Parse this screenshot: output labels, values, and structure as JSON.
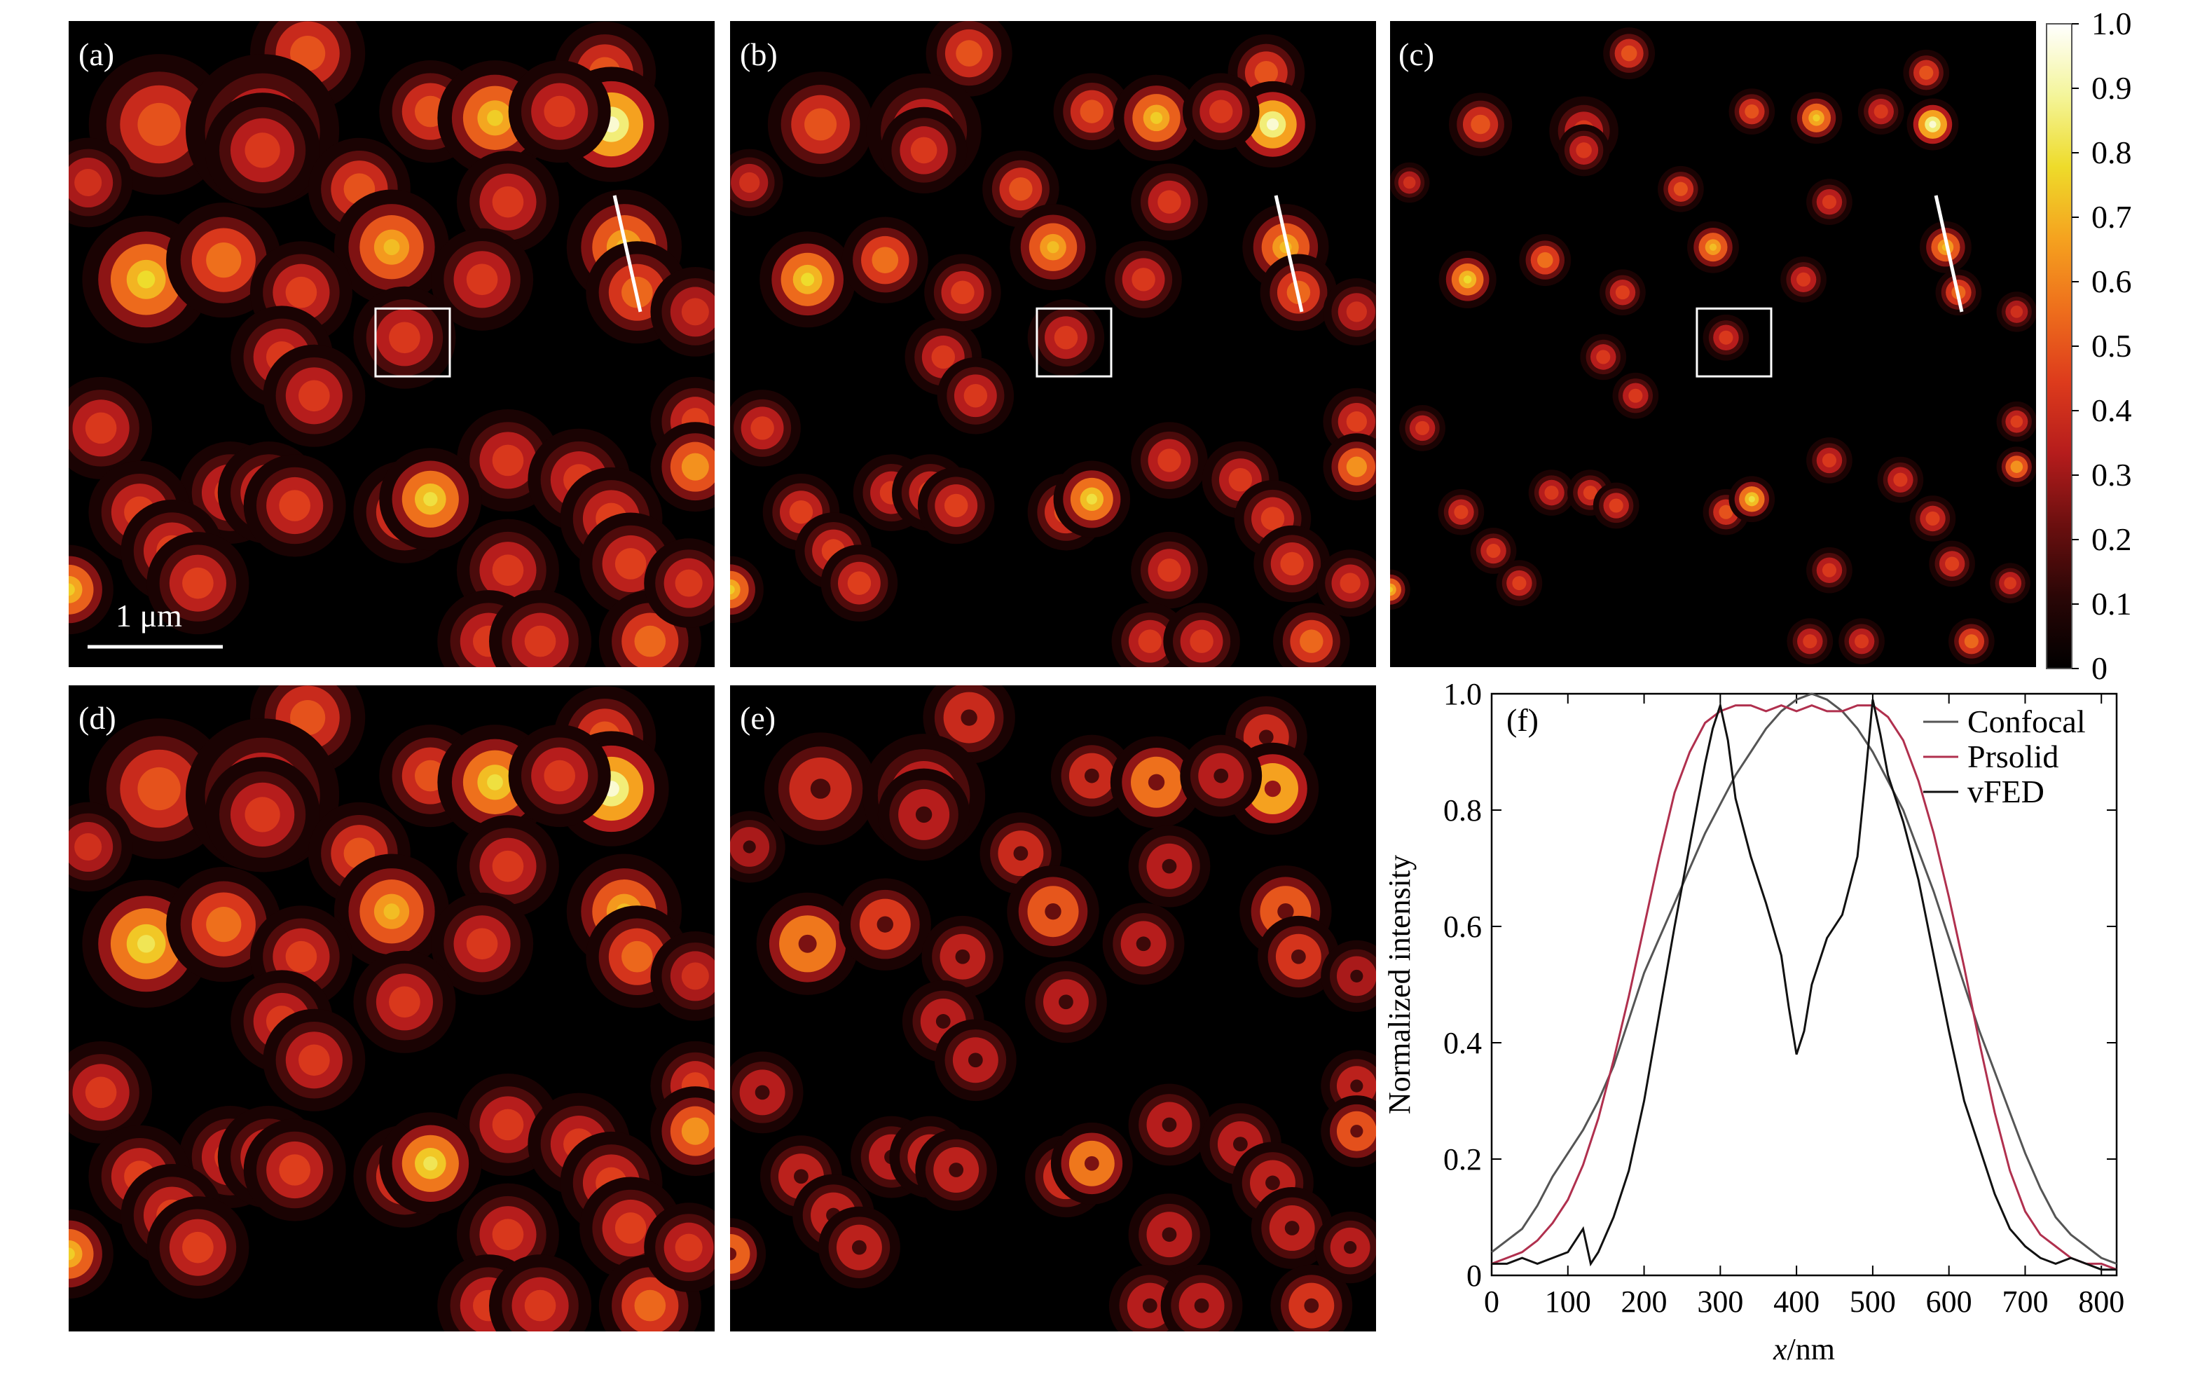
{
  "panel_labels": [
    "(a)",
    "(b)",
    "(c)",
    "(d)",
    "(e)",
    "(f)"
  ],
  "scale_bar_label": "1 μm",
  "colorbar": {
    "ticks": [
      "1.0",
      "0.9",
      "0.8",
      "0.7",
      "0.6",
      "0.5",
      "0.4",
      "0.3",
      "0.2",
      "0.1",
      "0"
    ],
    "colormap": [
      "#000000",
      "#2a0606",
      "#6b0f0f",
      "#b51c1c",
      "#dd3b1c",
      "#ee6e1c",
      "#f5a21f",
      "#eedb2a",
      "#f4f59a",
      "#ffffff"
    ]
  },
  "images": {
    "spots_top": [
      [
        0.37,
        0.05,
        0.09,
        0.55
      ],
      [
        0.14,
        0.16,
        0.11,
        0.55
      ],
      [
        0.3,
        0.17,
        0.12,
        0.48
      ],
      [
        0.56,
        0.14,
        0.08,
        0.55
      ],
      [
        0.66,
        0.15,
        0.09,
        0.75
      ],
      [
        0.83,
        0.08,
        0.08,
        0.55
      ],
      [
        0.84,
        0.16,
        0.09,
        0.95
      ],
      [
        0.3,
        0.2,
        0.09,
        0.48
      ],
      [
        0.03,
        0.25,
        0.07,
        0.45
      ],
      [
        0.45,
        0.26,
        0.08,
        0.55
      ],
      [
        0.68,
        0.28,
        0.08,
        0.48
      ],
      [
        0.12,
        0.4,
        0.1,
        0.78
      ],
      [
        0.24,
        0.37,
        0.09,
        0.62
      ],
      [
        0.5,
        0.35,
        0.09,
        0.72
      ],
      [
        0.86,
        0.35,
        0.09,
        0.72
      ],
      [
        0.88,
        0.42,
        0.08,
        0.6
      ],
      [
        0.36,
        0.42,
        0.08,
        0.5
      ],
      [
        0.64,
        0.4,
        0.08,
        0.48
      ],
      [
        0.52,
        0.49,
        0.08,
        0.48
      ],
      [
        0.33,
        0.52,
        0.08,
        0.48
      ],
      [
        0.38,
        0.58,
        0.08,
        0.48
      ],
      [
        0.97,
        0.45,
        0.07,
        0.45
      ],
      [
        0.05,
        0.63,
        0.08,
        0.48
      ],
      [
        0.97,
        0.62,
        0.07,
        0.5
      ],
      [
        0.97,
        0.69,
        0.07,
        0.7
      ],
      [
        0.68,
        0.68,
        0.08,
        0.48
      ],
      [
        0.79,
        0.71,
        0.08,
        0.48
      ],
      [
        0.25,
        0.73,
        0.08,
        0.48
      ],
      [
        0.11,
        0.76,
        0.08,
        0.5
      ],
      [
        0.16,
        0.82,
        0.08,
        0.5
      ],
      [
        0.2,
        0.87,
        0.08,
        0.5
      ],
      [
        0.31,
        0.73,
        0.08,
        0.5
      ],
      [
        0.35,
        0.75,
        0.08,
        0.5
      ],
      [
        0.52,
        0.76,
        0.08,
        0.55
      ],
      [
        0.56,
        0.74,
        0.08,
        0.8
      ],
      [
        0.84,
        0.77,
        0.08,
        0.5
      ],
      [
        0.87,
        0.84,
        0.08,
        0.5
      ],
      [
        0.0,
        0.88,
        0.07,
        0.75
      ],
      [
        0.68,
        0.85,
        0.08,
        0.48
      ],
      [
        0.65,
        0.96,
        0.08,
        0.48
      ],
      [
        0.73,
        0.96,
        0.08,
        0.48
      ],
      [
        0.9,
        0.96,
        0.08,
        0.6
      ],
      [
        0.76,
        0.14,
        0.08,
        0.48
      ],
      [
        0.96,
        0.87,
        0.07,
        0.48
      ]
    ],
    "spots_bottom": [
      [
        0.37,
        0.05,
        0.09,
        0.55
      ],
      [
        0.14,
        0.16,
        0.11,
        0.55
      ],
      [
        0.3,
        0.17,
        0.12,
        0.48
      ],
      [
        0.56,
        0.14,
        0.08,
        0.55
      ],
      [
        0.66,
        0.15,
        0.09,
        0.8
      ],
      [
        0.83,
        0.08,
        0.08,
        0.55
      ],
      [
        0.84,
        0.16,
        0.09,
        0.95
      ],
      [
        0.3,
        0.2,
        0.09,
        0.48
      ],
      [
        0.03,
        0.25,
        0.07,
        0.45
      ],
      [
        0.45,
        0.26,
        0.08,
        0.55
      ],
      [
        0.68,
        0.28,
        0.08,
        0.48
      ],
      [
        0.12,
        0.4,
        0.1,
        0.82
      ],
      [
        0.24,
        0.37,
        0.09,
        0.62
      ],
      [
        0.5,
        0.35,
        0.09,
        0.72
      ],
      [
        0.86,
        0.35,
        0.09,
        0.72
      ],
      [
        0.88,
        0.42,
        0.08,
        0.6
      ],
      [
        0.36,
        0.42,
        0.08,
        0.5
      ],
      [
        0.64,
        0.4,
        0.08,
        0.48
      ],
      [
        0.52,
        0.49,
        0.08,
        0.48
      ],
      [
        0.33,
        0.52,
        0.08,
        0.48
      ],
      [
        0.38,
        0.58,
        0.08,
        0.48
      ],
      [
        0.97,
        0.45,
        0.07,
        0.45
      ],
      [
        0.05,
        0.63,
        0.08,
        0.48
      ],
      [
        0.97,
        0.62,
        0.07,
        0.5
      ],
      [
        0.97,
        0.69,
        0.07,
        0.7
      ],
      [
        0.68,
        0.68,
        0.08,
        0.48
      ],
      [
        0.79,
        0.71,
        0.08,
        0.48
      ],
      [
        0.25,
        0.73,
        0.08,
        0.48
      ],
      [
        0.11,
        0.76,
        0.08,
        0.5
      ],
      [
        0.16,
        0.82,
        0.08,
        0.5
      ],
      [
        0.2,
        0.87,
        0.08,
        0.5
      ],
      [
        0.31,
        0.73,
        0.08,
        0.5
      ],
      [
        0.35,
        0.75,
        0.08,
        0.5
      ],
      [
        0.52,
        0.76,
        0.08,
        0.55
      ],
      [
        0.56,
        0.74,
        0.08,
        0.82
      ],
      [
        0.84,
        0.77,
        0.08,
        0.5
      ],
      [
        0.87,
        0.84,
        0.08,
        0.5
      ],
      [
        0.0,
        0.88,
        0.07,
        0.75
      ],
      [
        0.68,
        0.85,
        0.08,
        0.48
      ],
      [
        0.65,
        0.96,
        0.08,
        0.48
      ],
      [
        0.73,
        0.96,
        0.08,
        0.48
      ],
      [
        0.9,
        0.96,
        0.08,
        0.6
      ],
      [
        0.76,
        0.14,
        0.08,
        0.48
      ],
      [
        0.96,
        0.87,
        0.07,
        0.48
      ]
    ]
  },
  "chart_data": {
    "type": "line",
    "title": "",
    "panel_label": "(f)",
    "xlabel_italic": "x",
    "xlabel_unit": "/nm",
    "ylabel": "Normalized intensity",
    "xlim": [
      0,
      820
    ],
    "ylim": [
      0,
      1.0
    ],
    "xticks": [
      0,
      100,
      200,
      300,
      400,
      500,
      600,
      700,
      800
    ],
    "yticks": [
      "0",
      "0.2",
      "0.4",
      "0.6",
      "0.8",
      "1.0"
    ],
    "legend_position": "top-right",
    "series": [
      {
        "name": "Confocal",
        "color": "#555555",
        "x": [
          0,
          20,
          40,
          60,
          80,
          100,
          120,
          140,
          160,
          180,
          200,
          220,
          240,
          260,
          280,
          300,
          320,
          340,
          360,
          380,
          400,
          420,
          440,
          460,
          480,
          500,
          520,
          540,
          560,
          580,
          600,
          620,
          640,
          660,
          680,
          700,
          720,
          740,
          760,
          780,
          800,
          820
        ],
        "y": [
          0.04,
          0.06,
          0.08,
          0.12,
          0.17,
          0.21,
          0.25,
          0.3,
          0.36,
          0.44,
          0.52,
          0.58,
          0.64,
          0.7,
          0.76,
          0.81,
          0.86,
          0.9,
          0.94,
          0.97,
          0.99,
          1.0,
          0.99,
          0.97,
          0.94,
          0.9,
          0.85,
          0.8,
          0.73,
          0.66,
          0.58,
          0.5,
          0.42,
          0.35,
          0.28,
          0.21,
          0.15,
          0.1,
          0.07,
          0.05,
          0.03,
          0.02
        ]
      },
      {
        "name": "Prsolid",
        "color": "#b0304e",
        "x": [
          0,
          20,
          40,
          60,
          80,
          100,
          120,
          140,
          160,
          180,
          200,
          220,
          240,
          260,
          280,
          300,
          320,
          340,
          360,
          380,
          400,
          420,
          440,
          460,
          480,
          500,
          520,
          540,
          560,
          580,
          600,
          620,
          640,
          660,
          680,
          700,
          720,
          740,
          760,
          780,
          800,
          820
        ],
        "y": [
          0.02,
          0.03,
          0.04,
          0.06,
          0.09,
          0.13,
          0.19,
          0.27,
          0.37,
          0.48,
          0.6,
          0.72,
          0.83,
          0.9,
          0.95,
          0.97,
          0.98,
          0.98,
          0.97,
          0.98,
          0.97,
          0.98,
          0.97,
          0.97,
          0.98,
          0.98,
          0.96,
          0.92,
          0.85,
          0.76,
          0.65,
          0.53,
          0.4,
          0.28,
          0.18,
          0.11,
          0.07,
          0.05,
          0.03,
          0.02,
          0.02,
          0.01
        ]
      },
      {
        "name": "vFED",
        "color": "#111111",
        "x": [
          0,
          20,
          40,
          60,
          80,
          100,
          110,
          120,
          130,
          140,
          160,
          180,
          200,
          220,
          240,
          260,
          280,
          290,
          300,
          310,
          320,
          340,
          360,
          380,
          390,
          400,
          410,
          420,
          440,
          460,
          480,
          490,
          500,
          510,
          520,
          540,
          560,
          580,
          600,
          620,
          640,
          660,
          680,
          700,
          720,
          740,
          760,
          780,
          800,
          820
        ],
        "y": [
          0.02,
          0.02,
          0.03,
          0.02,
          0.03,
          0.04,
          0.06,
          0.08,
          0.02,
          0.04,
          0.1,
          0.18,
          0.3,
          0.45,
          0.6,
          0.74,
          0.88,
          0.94,
          0.98,
          0.92,
          0.82,
          0.72,
          0.64,
          0.55,
          0.46,
          0.38,
          0.42,
          0.5,
          0.58,
          0.62,
          0.72,
          0.85,
          0.99,
          0.93,
          0.86,
          0.78,
          0.68,
          0.55,
          0.42,
          0.3,
          0.22,
          0.14,
          0.08,
          0.05,
          0.03,
          0.02,
          0.03,
          0.02,
          0.01,
          0.01
        ]
      }
    ]
  }
}
